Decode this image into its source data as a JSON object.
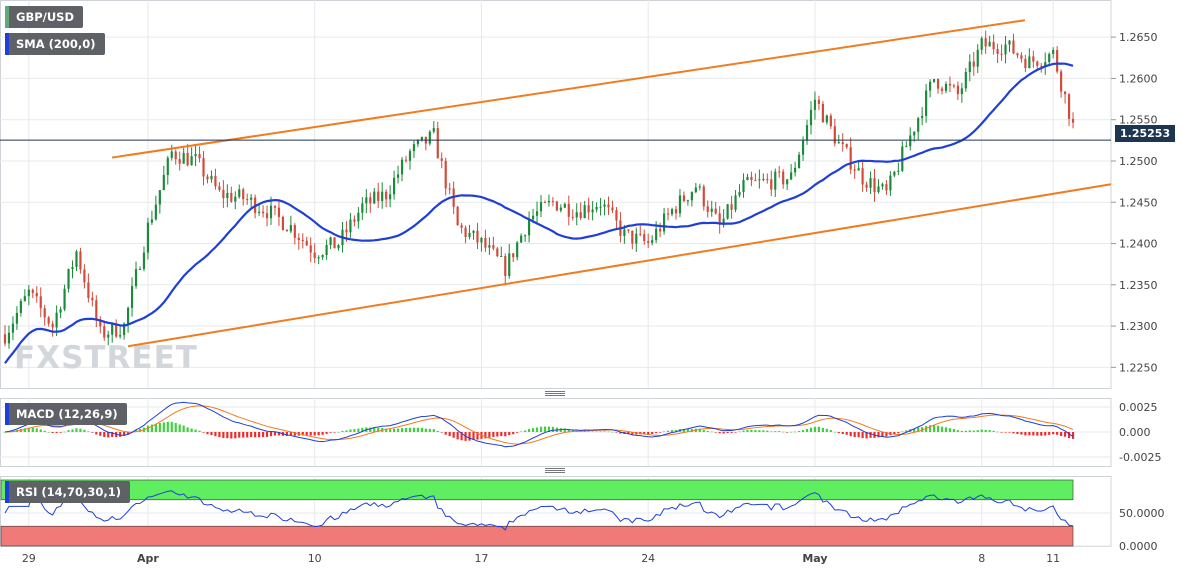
{
  "colors": {
    "up": "#1b8a3a",
    "down": "#d24a3a",
    "sma": "#1f3fd6",
    "channel": "#f07c1f",
    "macd_line": "#1f3fd6",
    "signal_line": "#f07c1f",
    "hist_pos": "#3ed13e",
    "hist_neg": "#f02a2a",
    "rsi_line": "#1f3fd6",
    "overbought": "#5fee5f",
    "oversold": "#f07a78",
    "current_price_badge": "#1e3552",
    "label_accent_pair": "#5fa97a",
    "label_accent_sma": "#1f3fd6"
  },
  "labels": {
    "pair": "GBP/USD",
    "sma": "SMA (200,0)",
    "macd": "MACD (12,26,9)",
    "rsi": "RSI (14,70,30,1)",
    "current_price": "1.25253",
    "watermark": "FXSTREET"
  },
  "chart_data": [
    {
      "type": "candlestick",
      "series": [
        {
          "name": "GBP/USD",
          "description_points": [
            [
              "Mar 28",
              1.229
            ],
            [
              "Mar 29",
              1.234
            ],
            [
              "Mar 30",
              1.23
            ],
            [
              "Mar 31",
              1.239
            ],
            [
              "Apr 1",
              1.229
            ],
            [
              "Apr 2",
              1.23
            ],
            [
              "Apr 3",
              1.242
            ],
            [
              "Apr 4",
              1.251
            ],
            [
              "Apr 5",
              1.25
            ],
            [
              "Apr 6",
              1.246
            ],
            [
              "Apr 7",
              1.2455
            ],
            [
              "Apr 8",
              1.244
            ],
            [
              "Apr 9",
              1.242
            ],
            [
              "Apr 10",
              1.239
            ],
            [
              "Apr 11",
              1.24
            ],
            [
              "Apr 12",
              1.2445
            ],
            [
              "Apr 13",
              1.246
            ],
            [
              "Apr 14",
              1.251
            ],
            [
              "Apr 15",
              1.253
            ],
            [
              "Apr 16",
              1.242
            ],
            [
              "Apr 17",
              1.24
            ],
            [
              "Apr 18",
              1.237
            ],
            [
              "Apr 19",
              1.243
            ],
            [
              "Apr 20",
              1.245
            ],
            [
              "Apr 21",
              1.244
            ],
            [
              "Apr 22",
              1.245
            ],
            [
              "Apr 23",
              1.241
            ],
            [
              "Apr 24",
              1.24
            ],
            [
              "Apr 25",
              1.244
            ],
            [
              "Apr 26",
              1.247
            ],
            [
              "Apr 27",
              1.242
            ],
            [
              "Apr 28",
              1.247
            ],
            [
              "Apr 29",
              1.2475
            ],
            [
              "Apr 30",
              1.248
            ],
            [
              "May 1",
              1.2575
            ],
            [
              "May 2",
              1.252
            ],
            [
              "May 3",
              1.248
            ],
            [
              "May 4",
              1.246
            ],
            [
              "May 5",
              1.253
            ],
            [
              "May 6",
              1.26
            ],
            [
              "May 7",
              1.258
            ],
            [
              "May 8",
              1.264
            ],
            [
              "May 9",
              1.264
            ],
            [
              "May 10",
              1.262
            ],
            [
              "May 11",
              1.263
            ],
            [
              "May 12",
              1.2525
            ]
          ]
        },
        {
          "name": "SMA (200,0)"
        }
      ],
      "current_price": 1.25253,
      "y_ticks": [
        "1.2650",
        "1.2600",
        "1.2550",
        "1.2500",
        "1.2450",
        "1.2400",
        "1.2350",
        "1.2300",
        "1.2250"
      ],
      "ylim": [
        1.2225,
        1.2695
      ],
      "x_ticks": [
        "29",
        "Apr",
        "10",
        "17",
        "24",
        "May",
        "8",
        "11"
      ],
      "channel": {
        "upper": [
          [
            "Apr 1",
            1.2502
          ],
          [
            "May 12",
            1.268
          ]
        ],
        "lower": [
          [
            "Apr 1",
            1.227
          ],
          [
            "May 12",
            1.2465
          ]
        ]
      },
      "grid": true
    },
    {
      "type": "line",
      "title": "MACD (12,26,9)",
      "y_ticks": [
        "0.0025",
        "0.000",
        "-0.0025"
      ],
      "ylim": [
        -0.0034,
        0.0034
      ],
      "grid": true
    },
    {
      "type": "line",
      "title": "RSI (14,70,30,1)",
      "y_ticks": [
        "50.0000",
        "0.0000"
      ],
      "ylim": [
        0,
        100
      ],
      "overbought": 70,
      "oversold": 30,
      "grid": true
    }
  ]
}
